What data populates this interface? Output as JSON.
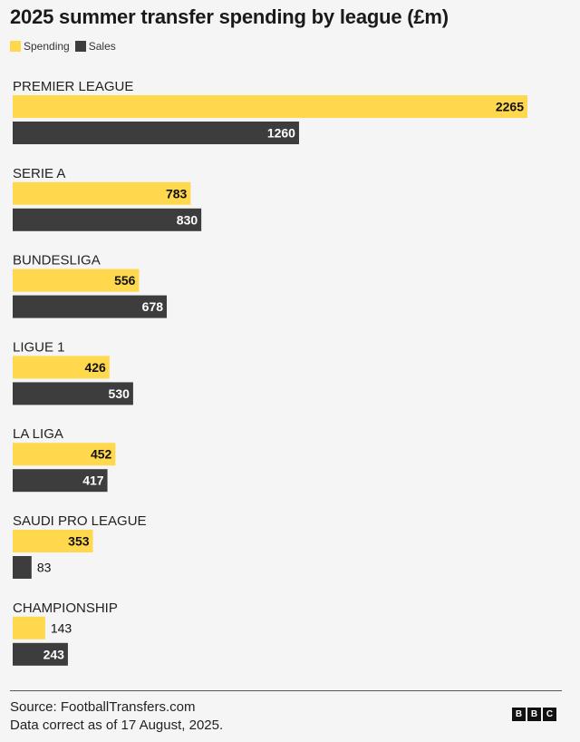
{
  "colors": {
    "spending": "#ffd84d",
    "sales": "#3d3d3d",
    "label_on_spending": "#111111",
    "label_on_sales": "#ffffff",
    "label_outside": "#111111"
  },
  "chart_data": {
    "type": "bar",
    "orientation": "horizontal",
    "title": "2025 summer transfer spending by league (£m)",
    "legend": [
      "Spending",
      "Sales"
    ],
    "legend_position": "top-left",
    "grid": false,
    "xlim": [
      0,
      2265
    ],
    "categories": [
      "PREMIER LEAGUE",
      "SERIE A",
      "BUNDESLIGA",
      "LIGUE 1",
      "LA LIGA",
      "SAUDI PRO LEAGUE",
      "CHAMPIONSHIP"
    ],
    "series": [
      {
        "name": "Spending",
        "values": [
          2265,
          783,
          556,
          426,
          452,
          353,
          143
        ]
      },
      {
        "name": "Sales",
        "values": [
          1260,
          830,
          678,
          530,
          417,
          83,
          243
        ]
      }
    ]
  },
  "footer": {
    "source": "Source: FootballTransfers.com",
    "note": "Data correct as of 17 August, 2025.",
    "logo_letters": [
      "B",
      "B",
      "C"
    ]
  }
}
